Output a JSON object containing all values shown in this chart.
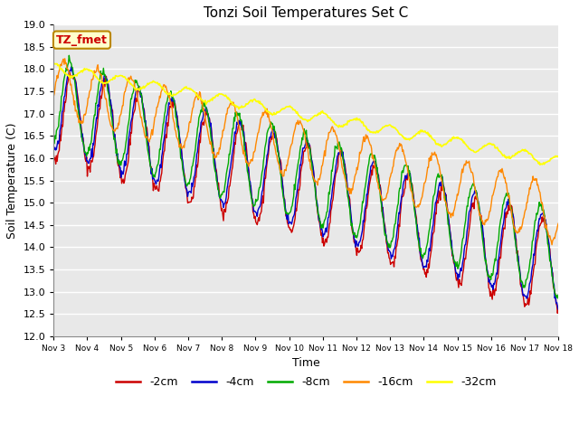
{
  "title": "Tonzi Soil Temperatures Set C",
  "xlabel": "Time",
  "ylabel": "Soil Temperature (C)",
  "ylim": [
    12.0,
    19.0
  ],
  "yticks": [
    12.0,
    12.5,
    13.0,
    13.5,
    14.0,
    14.5,
    15.0,
    15.5,
    16.0,
    16.5,
    17.0,
    17.5,
    18.0,
    18.5,
    19.0
  ],
  "xtick_labels": [
    "Nov 3",
    "Nov 4",
    "Nov 5",
    "Nov 6",
    "Nov 7",
    "Nov 8",
    "Nov 9",
    "Nov 10",
    "Nov 11",
    "Nov 12",
    "Nov 13",
    "Nov 14",
    "Nov 15",
    "Nov 16",
    "Nov 17",
    "Nov 18"
  ],
  "colors": {
    "-2cm": "#CC0000",
    "-4cm": "#0000CC",
    "-8cm": "#00AA00",
    "-16cm": "#FF8800",
    "-32cm": "#FFFF00"
  },
  "annotation_text": "TZ_fmet",
  "annotation_bg": "#FFFFCC",
  "annotation_border": "#BB8800",
  "annotation_text_color": "#CC0000",
  "plot_bg_color": "#E8E8E8",
  "fig_bg_color": "#FFFFFF",
  "n_points": 720,
  "n_days": 15
}
